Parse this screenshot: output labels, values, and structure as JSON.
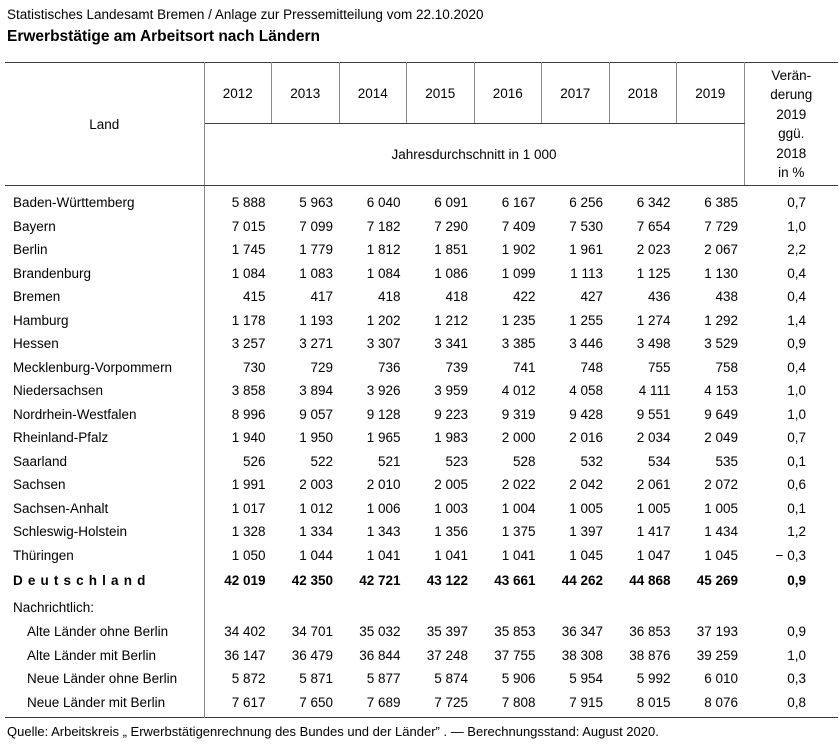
{
  "header": {
    "source_line": "Statistisches Landesamt Bremen /  Anlage zur Pressemitteilung vom 22.10.2020",
    "title": "Erwerbstätige am Arbeitsort nach Ländern"
  },
  "table": {
    "land_header": "Land",
    "year_headers": [
      "2012",
      "2013",
      "2014",
      "2015",
      "2016",
      "2017",
      "2018",
      "2019"
    ],
    "unit_header": "Jahresdurchschnitt in 1 000",
    "change_header": "Verän-\nderung\n2019\nggü.\n2018\nin %",
    "rows": [
      {
        "type": "state",
        "name": "Baden-Württemberg",
        "values": [
          "5 888",
          "5 963",
          "6 040",
          "6 091",
          "6 167",
          "6 256",
          "6 342",
          "6 385"
        ],
        "change": "0,7"
      },
      {
        "type": "state",
        "name": "Bayern",
        "values": [
          "7 015",
          "7 099",
          "7 182",
          "7 290",
          "7 409",
          "7 530",
          "7 654",
          "7 729"
        ],
        "change": "1,0"
      },
      {
        "type": "state",
        "name": "Berlin",
        "values": [
          "1 745",
          "1 779",
          "1 812",
          "1 851",
          "1 902",
          "1 961",
          "2 023",
          "2 067"
        ],
        "change": "2,2"
      },
      {
        "type": "state",
        "name": "Brandenburg",
        "values": [
          "1 084",
          "1 083",
          "1 084",
          "1 086",
          "1 099",
          "1 113",
          "1 125",
          "1 130"
        ],
        "change": "0,4"
      },
      {
        "type": "state",
        "name": "Bremen",
        "values": [
          "415",
          "417",
          "418",
          "418",
          "422",
          "427",
          "436",
          "438"
        ],
        "change": "0,4"
      },
      {
        "type": "state",
        "name": "Hamburg",
        "values": [
          "1 178",
          "1 193",
          "1 202",
          "1 212",
          "1 235",
          "1 255",
          "1 274",
          "1 292"
        ],
        "change": "1,4"
      },
      {
        "type": "state",
        "name": "Hessen",
        "values": [
          "3 257",
          "3 271",
          "3 307",
          "3 341",
          "3 385",
          "3 446",
          "3 498",
          "3 529"
        ],
        "change": "0,9"
      },
      {
        "type": "state",
        "name": "Mecklenburg-Vorpommern",
        "values": [
          "730",
          "729",
          "736",
          "739",
          "741",
          "748",
          "755",
          "758"
        ],
        "change": "0,4"
      },
      {
        "type": "state",
        "name": "Niedersachsen",
        "values": [
          "3 858",
          "3 894",
          "3 926",
          "3 959",
          "4 012",
          "4 058",
          "4 111",
          "4 153"
        ],
        "change": "1,0"
      },
      {
        "type": "state",
        "name": "Nordrhein-Westfalen",
        "values": [
          "8 996",
          "9 057",
          "9 128",
          "9 223",
          "9 319",
          "9 428",
          "9 551",
          "9 649"
        ],
        "change": "1,0"
      },
      {
        "type": "state",
        "name": "Rheinland-Pfalz",
        "values": [
          "1 940",
          "1 950",
          "1 965",
          "1 983",
          "2 000",
          "2 016",
          "2 034",
          "2 049"
        ],
        "change": "0,7"
      },
      {
        "type": "state",
        "name": "Saarland",
        "values": [
          "526",
          "522",
          "521",
          "523",
          "528",
          "532",
          "534",
          "535"
        ],
        "change": "0,1"
      },
      {
        "type": "state",
        "name": "Sachsen",
        "values": [
          "1 991",
          "2 003",
          "2 010",
          "2 005",
          "2 022",
          "2 042",
          "2 061",
          "2 072"
        ],
        "change": "0,6"
      },
      {
        "type": "state",
        "name": "Sachsen-Anhalt",
        "values": [
          "1 017",
          "1 012",
          "1 006",
          "1 003",
          "1 004",
          "1 005",
          "1 005",
          "1 005"
        ],
        "change": "0,1"
      },
      {
        "type": "state",
        "name": "Schleswig-Holstein",
        "values": [
          "1 328",
          "1 334",
          "1 343",
          "1 356",
          "1 375",
          "1 397",
          "1 417",
          "1 434"
        ],
        "change": "1,2"
      },
      {
        "type": "state",
        "name": "Thüringen",
        "values": [
          "1 050",
          "1 044",
          "1 041",
          "1 041",
          "1 041",
          "1 045",
          "1 047",
          "1 045"
        ],
        "change": "− 0,3"
      },
      {
        "type": "total",
        "name": "Deutschland",
        "values": [
          "42 019",
          "42 350",
          "42 721",
          "43 122",
          "43 661",
          "44 262",
          "44 868",
          "45 269"
        ],
        "change": "0,9"
      },
      {
        "type": "section",
        "name": "Nachrichtlich:",
        "values": [
          "",
          "",
          "",
          "",
          "",
          "",
          "",
          ""
        ],
        "change": ""
      },
      {
        "type": "sub",
        "name": "Alte Länder ohne Berlin",
        "values": [
          "34 402",
          "34 701",
          "35 032",
          "35 397",
          "35 853",
          "36 347",
          "36 853",
          "37 193"
        ],
        "change": "0,9"
      },
      {
        "type": "sub",
        "name": "Alte Länder mit Berlin",
        "values": [
          "36 147",
          "36 479",
          "36 844",
          "37 248",
          "37 755",
          "38 308",
          "38 876",
          "39 259"
        ],
        "change": "1,0"
      },
      {
        "type": "sub",
        "name": "Neue Länder ohne Berlin",
        "values": [
          "5 872",
          "5 871",
          "5 877",
          "5 874",
          "5 906",
          "5 954",
          "5 992",
          "6 010"
        ],
        "change": "0,3"
      },
      {
        "type": "sub",
        "name": "Neue Länder mit Berlin",
        "values": [
          "7 617",
          "7 650",
          "7 689",
          "7 725",
          "7 808",
          "7 915",
          "8 015",
          "8 076"
        ],
        "change": "0,8"
      }
    ]
  },
  "footer": {
    "note": "Quelle: Arbeitskreis „ Erwerbstätigenrechnung des Bundes und der Länder” . — Berechnungsstand: August 2020."
  }
}
